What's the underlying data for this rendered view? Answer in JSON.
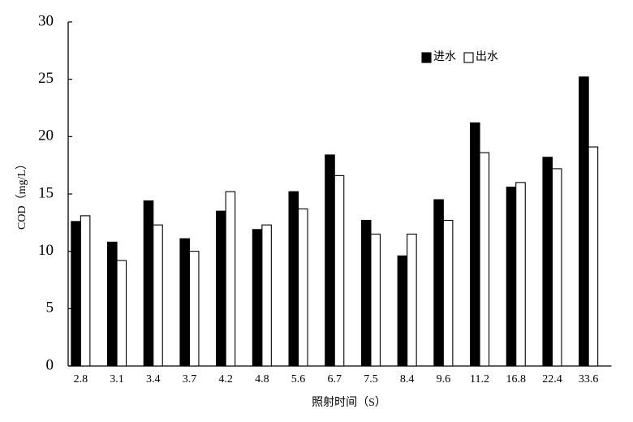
{
  "chart_data": {
    "type": "bar",
    "categories": [
      "2.8",
      "3.1",
      "3.4",
      "3.7",
      "4.2",
      "4.8",
      "5.6",
      "6.7",
      "7.5",
      "8.4",
      "9.6",
      "11.2",
      "16.8",
      "22.4",
      "33.6"
    ],
    "series": [
      {
        "name": "进水",
        "color": "#000000",
        "values": [
          12.6,
          10.8,
          14.4,
          11.1,
          13.5,
          11.9,
          15.2,
          18.4,
          12.7,
          9.6,
          14.5,
          21.2,
          15.6,
          18.2,
          25.2
        ]
      },
      {
        "name": "出水",
        "color": "#ffffff",
        "values": [
          13.1,
          9.2,
          12.3,
          10.0,
          15.2,
          12.3,
          13.7,
          16.6,
          11.5,
          11.5,
          12.7,
          18.6,
          16.0,
          17.2,
          19.1
        ]
      }
    ],
    "x_label": "照射时间（S）",
    "y_label": "COD（mg/L）",
    "ylim": [
      0,
      30
    ],
    "yticks": [
      0,
      5,
      10,
      15,
      20,
      25,
      30
    ],
    "legend": "upper right"
  }
}
